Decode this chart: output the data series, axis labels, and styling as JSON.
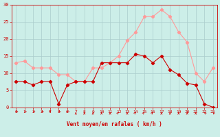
{
  "hours": [
    0,
    1,
    2,
    3,
    4,
    5,
    6,
    7,
    8,
    9,
    10,
    11,
    12,
    13,
    14,
    15,
    16,
    17,
    18,
    19,
    20,
    21,
    22,
    23
  ],
  "mean_wind": [
    7.5,
    7.5,
    6.5,
    7.5,
    7.5,
    1,
    6.5,
    7.5,
    7.5,
    7.5,
    13,
    13,
    13,
    13,
    15.5,
    15,
    13,
    15,
    11,
    9.5,
    7,
    6.5,
    1,
    0
  ],
  "gust_wind": [
    13,
    13.5,
    11.5,
    11.5,
    11.5,
    9.5,
    9.5,
    7.5,
    7.5,
    11.5,
    11.5,
    13,
    15,
    19.5,
    22,
    26.5,
    26.5,
    28.5,
    26.5,
    22,
    19,
    10,
    7.5,
    11.5
  ],
  "mean_color": "#cc0000",
  "gust_color": "#ff9999",
  "bg_color": "#cceee8",
  "grid_color": "#aacccc",
  "xlabel": "Vent moyen/en rafales ( km/h )",
  "xlabel_color": "#cc0000",
  "ylim": [
    0,
    30
  ],
  "yticks": [
    0,
    5,
    10,
    15,
    20,
    25,
    30
  ],
  "arrow_angles": [
    -135,
    -135,
    -135,
    -135,
    -180,
    -135,
    -135,
    0,
    0,
    0,
    0,
    0,
    45,
    0,
    45,
    45,
    45,
    0,
    0,
    0,
    0,
    0,
    -45,
    -45
  ]
}
